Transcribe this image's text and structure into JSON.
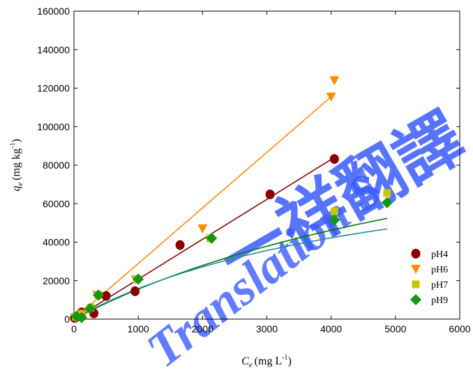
{
  "chart_data": {
    "type": "scatter",
    "xlabel_main": "C",
    "xlabel_sub": "e",
    "xlabel_unit": "(mg L",
    "xlabel_sup": "-1",
    "xlabel_close": ")",
    "ylabel_main": "q",
    "ylabel_sub": "e",
    "ylabel_unit": "(mg kg",
    "ylabel_sup": "-1",
    "ylabel_close": ")",
    "xlim": [
      0,
      6000
    ],
    "ylim": [
      0,
      160000
    ],
    "xticks": [
      0,
      1000,
      2000,
      3000,
      4000,
      5000,
      6000
    ],
    "yticks": [
      0,
      20000,
      40000,
      60000,
      80000,
      100000,
      120000,
      140000,
      160000
    ],
    "grid": false,
    "legend_position": "bottom-right",
    "series": [
      {
        "name": "pH4",
        "marker": "circle",
        "color": "#8b0000",
        "x": [
          10,
          50,
          120,
          310,
          500,
          950,
          1650,
          3050,
          4050
        ],
        "y": [
          600,
          1200,
          3500,
          3000,
          12000,
          14500,
          38500,
          64800,
          83200
        ],
        "fit": {
          "kind": "linear",
          "x": [
            0,
            4050
          ],
          "y": [
            0,
            84000
          ],
          "color": "#8b0000"
        }
      },
      {
        "name": "pH6",
        "marker": "triangle-down",
        "color": "#ff8c00",
        "x": [
          20,
          80,
          140,
          360,
          960,
          2000,
          4000,
          4050
        ],
        "y": [
          800,
          1600,
          2800,
          12500,
          20500,
          47000,
          115500,
          124000
        ],
        "fit": {
          "kind": "linear",
          "x": [
            0,
            4050
          ],
          "y": [
            0,
            117000
          ],
          "color": "#ff8c00"
        }
      },
      {
        "name": "pH7",
        "marker": "square",
        "color": "#c8c800",
        "x": [
          30,
          100,
          260,
          380,
          980,
          2120,
          4050,
          4870
        ],
        "y": [
          1200,
          2200,
          6000,
          12500,
          20800,
          42000,
          56000,
          65500
        ],
        "fit": {
          "kind": "curve",
          "qmax": 135000,
          "k": 0.00013,
          "xmax": 4870,
          "color": "#007700"
        }
      },
      {
        "name": "pH9",
        "marker": "diamond",
        "color": "#119911",
        "x": [
          40,
          120,
          250,
          380,
          1000,
          2140,
          4050,
          4870
        ],
        "y": [
          1500,
          800,
          5500,
          12500,
          20800,
          42000,
          51500,
          60500
        ],
        "fit": {
          "kind": "curve",
          "qmax": 95000,
          "k": 0.0002,
          "xmax": 4870,
          "color": "#228b99"
        }
      }
    ]
  },
  "watermark": {
    "cjk": "一祥翻譯",
    "latin": "Translation S"
  }
}
